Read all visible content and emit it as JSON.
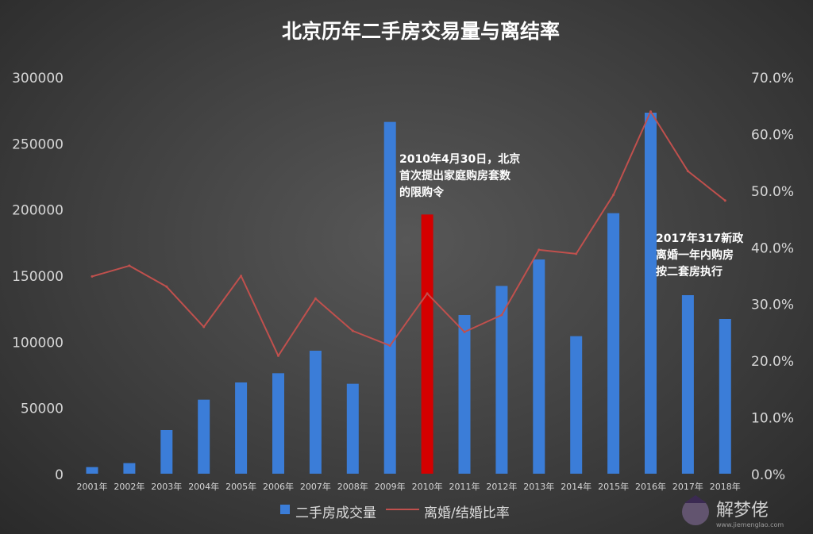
{
  "chart_data": {
    "type": "bar",
    "title": "北京历年二手房交易量与离结率",
    "categories": [
      "2001年",
      "2002年",
      "2003年",
      "2004年",
      "2005年",
      "2006年",
      "2007年",
      "2008年",
      "2009年",
      "2010年",
      "2011年",
      "2012年",
      "2013年",
      "2014年",
      "2015年",
      "2016年",
      "2017年",
      "2018年"
    ],
    "series": [
      {
        "name": "二手房成交量",
        "kind": "bar",
        "axis": "left",
        "color": "#3b7dd8",
        "highlight_index": 9,
        "highlight_color": "#d40000",
        "values": [
          5000,
          8000,
          33000,
          56000,
          69000,
          76000,
          93000,
          68000,
          266000,
          196000,
          120000,
          142000,
          162000,
          104000,
          197000,
          273000,
          135000,
          117000
        ]
      },
      {
        "name": "离婚/结婚比率",
        "kind": "line",
        "axis": "right",
        "color": "#c0504d",
        "values": [
          34.8,
          36.7,
          33.0,
          25.9,
          34.9,
          20.8,
          30.9,
          25.2,
          22.6,
          31.8,
          25.0,
          28.0,
          39.5,
          38.8,
          49.2,
          63.9,
          53.4,
          48.2
        ]
      }
    ],
    "ylim_left": [
      0,
      300000
    ],
    "ylim_right": [
      0,
      70
    ],
    "yticks_left": [
      "0",
      "50000",
      "100000",
      "150000",
      "200000",
      "250000",
      "300000"
    ],
    "yticks_right": [
      "0.0%",
      "10.0%",
      "20.0%",
      "30.0%",
      "40.0%",
      "50.0%",
      "60.0%",
      "70.0%"
    ],
    "grid": false,
    "legend_position": "bottom",
    "annotations": [
      {
        "lines": [
          "2010年4月30日，北京",
          "首次提出家庭购房套数",
          "的限购令"
        ],
        "near_category": "2010年"
      },
      {
        "lines": [
          "2017年317新政",
          "离婚一年内购房",
          "按二套房执行"
        ],
        "near_category": "2017年"
      }
    ]
  },
  "legend": {
    "bar_label": "二手房成交量",
    "line_label": "离婚/结婚比率"
  },
  "watermark": {
    "text": "解梦佬",
    "sub": "www.jiemenglao.com"
  }
}
